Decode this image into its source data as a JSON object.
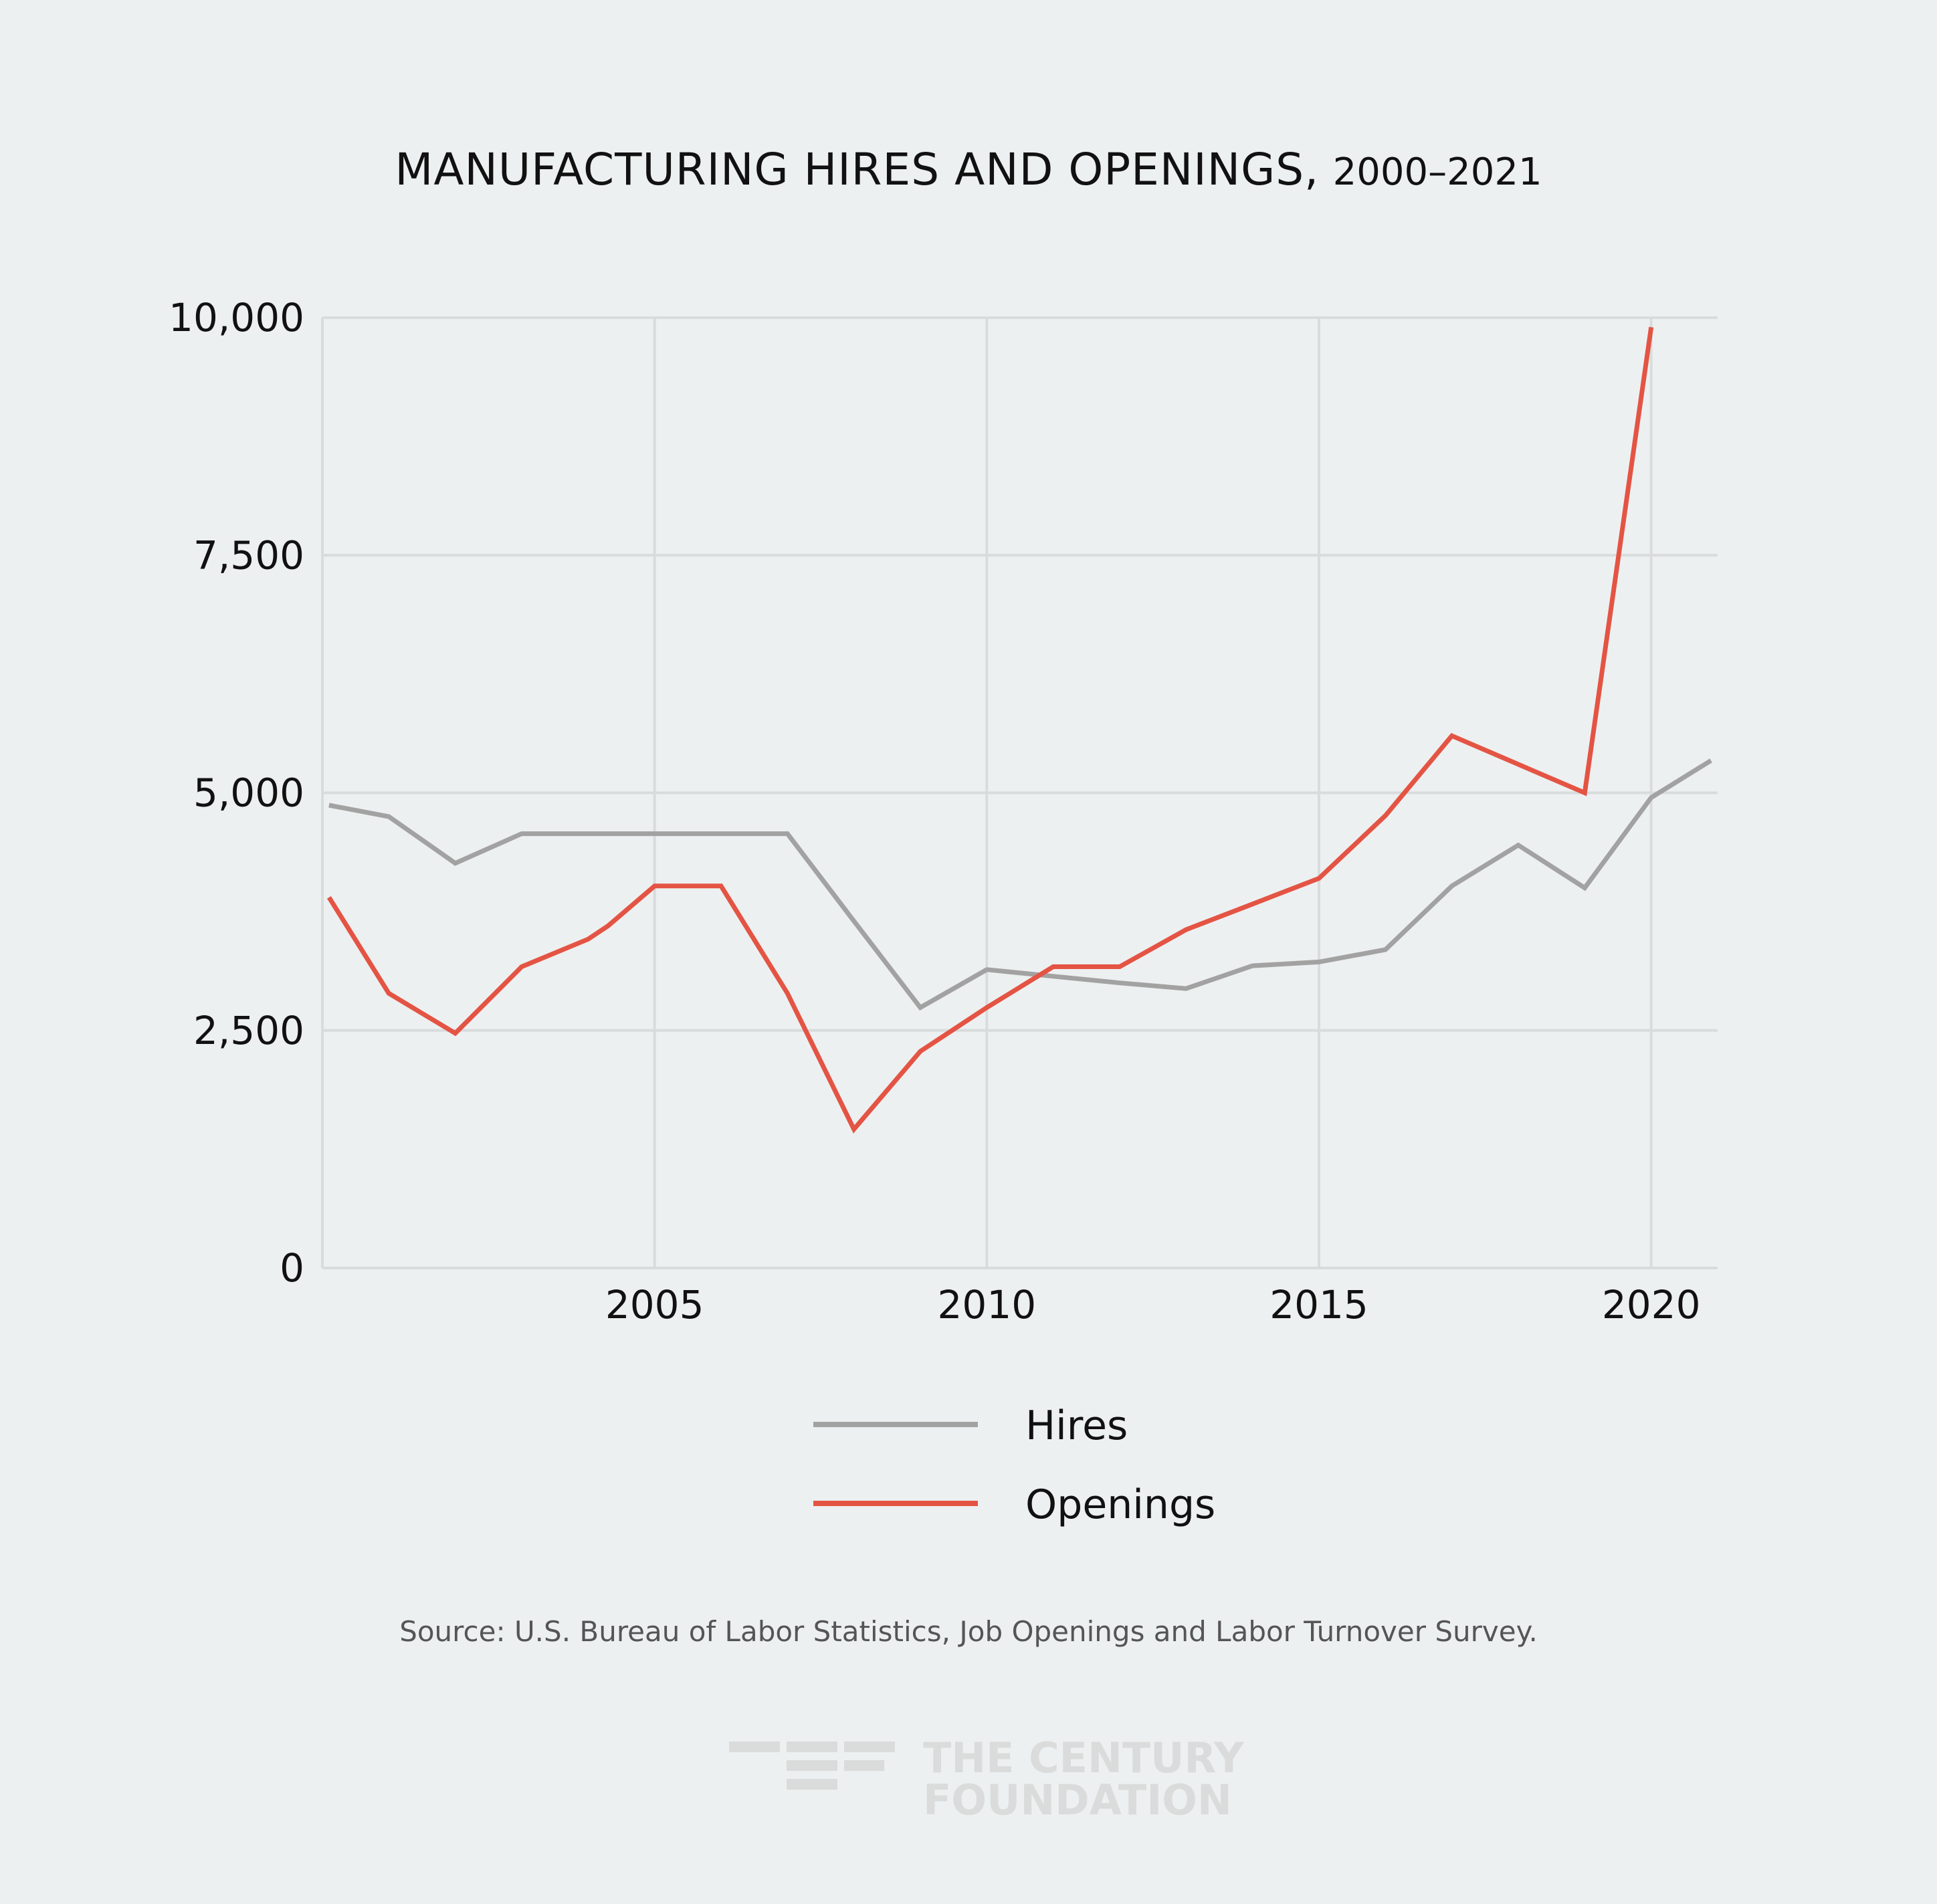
{
  "chart_data": {
    "type": "line",
    "title": "MANUFACTURING HIRES AND OPENINGS,",
    "title_years": "2000–2021",
    "xlabel": "",
    "ylabel": "",
    "xlim": [
      2000,
      2021
    ],
    "ylim": [
      0,
      10000
    ],
    "x_ticks": [
      2005,
      2010,
      2015,
      2020
    ],
    "y_ticks": [
      {
        "value": 0,
        "label": "0"
      },
      {
        "value": 2500,
        "label": "2,500"
      },
      {
        "value": 5000,
        "label": "5,000"
      },
      {
        "value": 7500,
        "label": "7,500"
      },
      {
        "value": 10000,
        "label": "10,000"
      }
    ],
    "grid": true,
    "legend_position": "bottom-center",
    "series": [
      {
        "name": "Hires",
        "color": "#a2a2a2",
        "points": [
          [
            2000.1,
            4870
          ],
          [
            2001.0,
            4750
          ],
          [
            2002.0,
            4260
          ],
          [
            2003.0,
            4570
          ],
          [
            2004.0,
            4570
          ],
          [
            2005.0,
            4570
          ],
          [
            2006.0,
            4570
          ],
          [
            2007.0,
            4570
          ],
          [
            2008.0,
            3650
          ],
          [
            2009.0,
            2740
          ],
          [
            2010.0,
            3140
          ],
          [
            2011.0,
            3070
          ],
          [
            2012.0,
            3000
          ],
          [
            2013.0,
            2940
          ],
          [
            2014.0,
            3180
          ],
          [
            2015.0,
            3220
          ],
          [
            2016.0,
            3350
          ],
          [
            2017.0,
            4020
          ],
          [
            2018.0,
            4450
          ],
          [
            2019.0,
            4000
          ],
          [
            2020.0,
            4950
          ],
          [
            2020.9,
            5340
          ]
        ]
      },
      {
        "name": "Openings",
        "color": "#e45444",
        "points": [
          [
            2000.1,
            3900
          ],
          [
            2001.0,
            2890
          ],
          [
            2002.0,
            2470
          ],
          [
            2003.0,
            3170
          ],
          [
            2004.0,
            3460
          ],
          [
            2004.3,
            3600
          ],
          [
            2005.0,
            4020
          ],
          [
            2006.0,
            4020
          ],
          [
            2007.0,
            2890
          ],
          [
            2008.0,
            1460
          ],
          [
            2009.0,
            2280
          ],
          [
            2010.0,
            2740
          ],
          [
            2011.0,
            3170
          ],
          [
            2012.0,
            3170
          ],
          [
            2013.0,
            3560
          ],
          [
            2014.0,
            3830
          ],
          [
            2015.0,
            4100
          ],
          [
            2016.0,
            4760
          ],
          [
            2017.0,
            5600
          ],
          [
            2018.0,
            5300
          ],
          [
            2019.0,
            5000
          ],
          [
            2020.0,
            9900
          ]
        ]
      }
    ]
  },
  "source": "Source: U.S. Bureau of Labor Statistics, Job Openings and Labor Turnover Survey.",
  "logo": {
    "line1": "THE CENTURY",
    "line2": "FOUNDATION",
    "color": "#dadcdc"
  },
  "colors": {
    "background": "#edf0f0",
    "grid": "#d9dcdd",
    "text": "#111111"
  }
}
